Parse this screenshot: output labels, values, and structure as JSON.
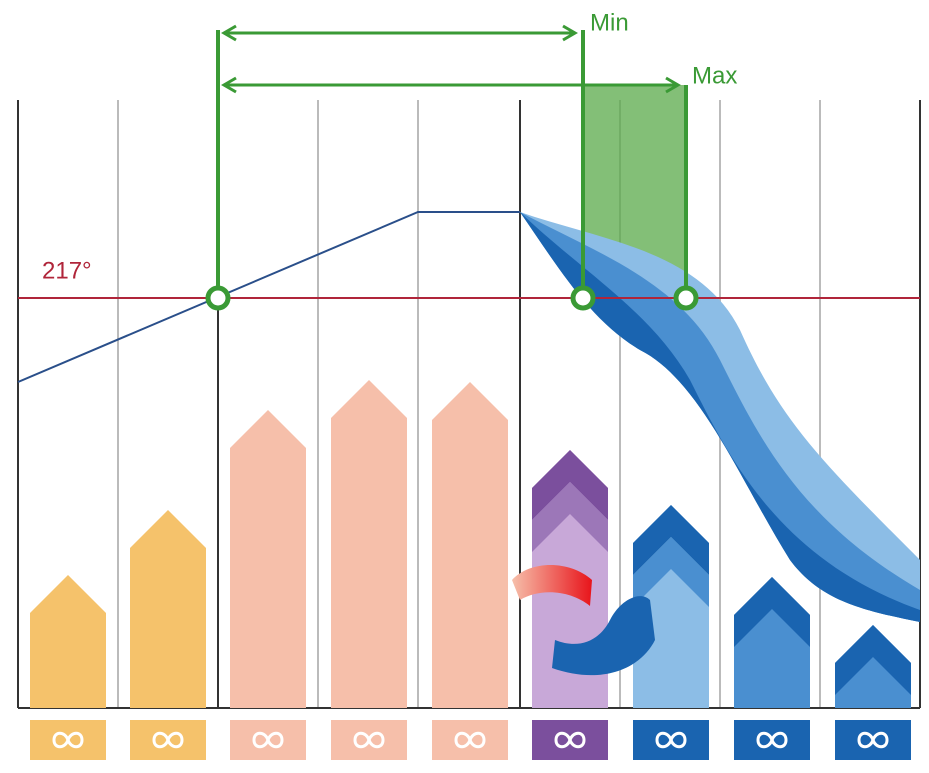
{
  "labels": {
    "min": "Min",
    "max": "Max",
    "temperature": "217°"
  }
}
